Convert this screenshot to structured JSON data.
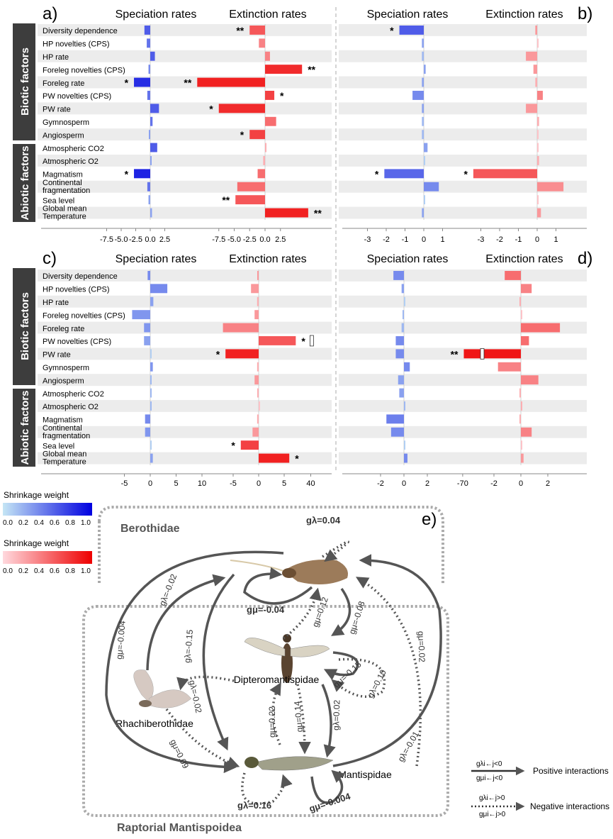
{
  "panel_letters": [
    "a)",
    "b)",
    "c)",
    "d)",
    "e)"
  ],
  "headers": {
    "speciation": "Speciation rates",
    "extinction": "Extinction rates"
  },
  "groups": {
    "biotic": "Biotic factors",
    "abiotic": "Abiotic factors"
  },
  "legend": {
    "spec_title": "Shrinkage weight",
    "ext_title": "Shrinkage weight",
    "ticks": [
      "0.0",
      "0.2",
      "0.4",
      "0.6",
      "0.8",
      "1.0"
    ],
    "spec_colors": [
      "#c5e6f5",
      "#0000e0"
    ],
    "ext_colors": [
      "#ffd9de",
      "#ee0000"
    ]
  },
  "chart_data": [
    {
      "panel": "a)",
      "type": "bar",
      "orientation": "horizontal",
      "categories": [
        "Diversity dependence",
        "HP novelties (CPS)",
        "HP rate",
        "Foreleg novelties (CPS)",
        "Foreleg rate",
        "PW novelties (CPS)",
        "PW rate",
        "Gymnosperm",
        "Angiosperm",
        "Atmospheric CO2",
        "Atmospheric O2",
        "Magmatism",
        "Continental fragmentation",
        "Sea level",
        "Global mean Temperature"
      ],
      "category_labels": [
        "Diversity dependence",
        "HP novelties (CPS)",
        "HP rate",
        "Foreleg novelties (CPS)",
        "Foreleg rate",
        "PW novelties (CPS)",
        "PW rate",
        "Gymnosperm",
        "Angiosperm",
        "Atmospheric CO2",
        "Atmospheric O2",
        "Magmatism",
        "Continental|fragmentation",
        "Sea level",
        "Global mean|Temperature"
      ],
      "series": [
        {
          "name": "Speciation rates",
          "values": [
            -1.0,
            -0.6,
            0.8,
            -0.3,
            -2.8,
            -0.5,
            1.5,
            0.4,
            -0.2,
            1.2,
            0.2,
            -2.8,
            -0.5,
            -0.3,
            0.3
          ],
          "weights": [
            0.6,
            0.5,
            0.6,
            0.4,
            0.8,
            0.5,
            0.6,
            0.5,
            0.3,
            0.6,
            0.3,
            0.85,
            0.5,
            0.3,
            0.3
          ],
          "signif": [
            "",
            "",
            "",
            "",
            "*",
            "",
            "",
            "",
            "",
            "",
            "",
            "*",
            "",
            "",
            ""
          ]
        },
        {
          "name": "Extinction rates",
          "values": [
            -2.5,
            -1.0,
            0.8,
            6.0,
            -11.0,
            1.5,
            -7.5,
            1.8,
            -2.5,
            0.0,
            -0.3,
            -1.2,
            -4.5,
            -4.8,
            7.0
          ],
          "weights": [
            0.6,
            0.4,
            0.4,
            0.8,
            0.85,
            0.7,
            0.8,
            0.5,
            0.7,
            0.2,
            0.2,
            0.5,
            0.5,
            0.6,
            0.85
          ],
          "signif": [
            "**",
            "",
            "",
            "**",
            "**",
            "*",
            "*",
            "",
            "*",
            "",
            "",
            "",
            "",
            "**",
            "**"
          ]
        }
      ],
      "xticks_spec": [
        "-7.5",
        "-5.0",
        "-2.5",
        "0.0",
        "2.5"
      ],
      "xticks_ext": [
        "-7.5",
        "-5.0",
        "-2.5",
        "0.0",
        "2.5"
      ]
    },
    {
      "panel": "b)",
      "type": "bar",
      "orientation": "horizontal",
      "series": [
        {
          "name": "Speciation rates",
          "values": [
            -1.3,
            -0.1,
            -0.1,
            0.1,
            -0.1,
            -0.6,
            -0.1,
            -0.1,
            -0.1,
            0.2,
            0.0,
            -2.1,
            0.8,
            0.0,
            -0.1
          ],
          "weights": [
            0.6,
            0.3,
            0.2,
            0.3,
            0.3,
            0.4,
            0.3,
            0.2,
            0.2,
            0.3,
            0.1,
            0.55,
            0.4,
            0.1,
            0.3
          ],
          "signif": [
            "*",
            "",
            "",
            "",
            "",
            "",
            "",
            "",
            "",
            "",
            "",
            "*",
            "",
            "",
            ""
          ]
        },
        {
          "name": "Extinction rates",
          "values": [
            -0.1,
            0.0,
            -0.6,
            -0.2,
            -0.1,
            0.3,
            -0.6,
            0.1,
            0.0,
            0.0,
            0.1,
            -3.4,
            1.4,
            0.0,
            0.2
          ],
          "weights": [
            0.3,
            0.1,
            0.3,
            0.3,
            0.2,
            0.4,
            0.3,
            0.2,
            0.1,
            0.1,
            0.2,
            0.6,
            0.35,
            0.1,
            0.3
          ],
          "signif": [
            "",
            "",
            "",
            "",
            "",
            "",
            "",
            "",
            "",
            "",
            "",
            "*",
            "",
            "",
            ""
          ]
        }
      ],
      "xticks_spec": [
        "-3",
        "-2",
        "-1",
        "0",
        "1"
      ],
      "xticks_ext": [
        "-3",
        "-2",
        "-1",
        "0",
        "1"
      ]
    },
    {
      "panel": "c)",
      "type": "bar",
      "orientation": "horizontal",
      "series": [
        {
          "name": "Speciation rates",
          "values": [
            -0.5,
            3.3,
            0.6,
            -3.5,
            -1.2,
            -1.2,
            0.0,
            0.5,
            0.2,
            0.1,
            0.2,
            -1.0,
            -1.0,
            0.0,
            0.5
          ],
          "weights": [
            0.4,
            0.4,
            0.3,
            0.35,
            0.35,
            0.3,
            0.1,
            0.35,
            0.2,
            0.2,
            0.2,
            0.4,
            0.35,
            0.1,
            0.3
          ],
          "signif": [
            "",
            "",
            "",
            "",
            "",
            "",
            "",
            "",
            "",
            "",
            "",
            "",
            "",
            "",
            ""
          ]
        },
        {
          "name": "Extinction rates",
          "values": [
            -0.2,
            -1.5,
            -0.3,
            -0.8,
            -7.0,
            9.8,
            -6.5,
            -0.3,
            -0.8,
            -0.2,
            0.0,
            -0.3,
            -1.2,
            -3.5,
            6.0
          ],
          "weights": [
            0.3,
            0.3,
            0.2,
            0.3,
            0.4,
            0.6,
            0.85,
            0.2,
            0.3,
            0.2,
            0.1,
            0.2,
            0.3,
            0.7,
            0.85
          ],
          "signif": [
            "",
            "",
            "",
            "",
            "",
            "*",
            "*",
            "",
            "",
            "",
            "",
            "",
            "",
            "*",
            "*"
          ]
        }
      ],
      "xticks_spec": [
        "-5",
        "0",
        "5",
        "10"
      ],
      "xticks_ext": [
        "-5",
        "0",
        "5",
        "40"
      ]
    },
    {
      "panel": "d)",
      "type": "bar",
      "orientation": "horizontal",
      "series": [
        {
          "name": "Speciation rates",
          "values": [
            -0.9,
            -0.2,
            0.0,
            -0.1,
            -0.2,
            -0.7,
            -0.7,
            0.5,
            -0.5,
            -0.4,
            0.1,
            -1.5,
            -1.1,
            0.0,
            0.3
          ],
          "weights": [
            0.4,
            0.3,
            0.1,
            0.2,
            0.2,
            0.4,
            0.4,
            0.4,
            0.3,
            0.3,
            0.2,
            0.45,
            0.4,
            0.1,
            0.4
          ],
          "signif": [
            "",
            "",
            "",
            "",
            "",
            "",
            "",
            "",
            "",
            "",
            "",
            "",
            "",
            "",
            ""
          ]
        },
        {
          "name": "Extinction rates",
          "values": [
            -1.2,
            0.8,
            -0.1,
            0.0,
            2.9,
            0.6,
            -66.0,
            -1.7,
            1.3,
            -0.1,
            0.1,
            -0.1,
            0.8,
            0.0,
            0.2
          ],
          "weights": [
            0.5,
            0.4,
            0.2,
            0.1,
            0.5,
            0.5,
            0.9,
            0.4,
            0.4,
            0.2,
            0.2,
            0.2,
            0.4,
            0.1,
            0.3
          ],
          "signif": [
            "",
            "",
            "",
            "",
            "",
            "",
            "**",
            "",
            "",
            "",
            "",
            "",
            "",
            "",
            ""
          ]
        }
      ],
      "xticks_spec": [
        "-2",
        "0",
        "2"
      ],
      "xticks_ext": [
        "-70",
        "-2",
        "0",
        "2"
      ]
    }
  ],
  "network": {
    "clade_berothidae": "Berothidae",
    "clade_raptorial": "Raptorial Mantispoidea",
    "taxa": [
      "Dipteromantispidae",
      "Rhachiberothidae",
      "Mantispidae"
    ],
    "edges": [
      "gλ=0.04",
      "gμ=-0.04",
      "gλ=-0.02",
      "gμ=-0.004",
      "gλ=-0.15",
      "gμ=0.12",
      "gμ=-0.08",
      "gμ=0.02",
      "gμ=-0.15",
      "gλ=0.10",
      "gλ=-0.02",
      "gμ=0.22",
      "gμ=0.14",
      "gλ=0.02",
      "gμ=0.09",
      "gλ=-0.01",
      "gλ=0.16",
      "gμ=-0.004"
    ],
    "legend_pos": "Positive interactions",
    "legend_neg": "Negative interactions",
    "legend_pos_top": "gλi←j<0",
    "legend_pos_bot": "gμi←j<0",
    "legend_neg_top": "gλi←j>0",
    "legend_neg_bot": "gμi←j>0"
  }
}
